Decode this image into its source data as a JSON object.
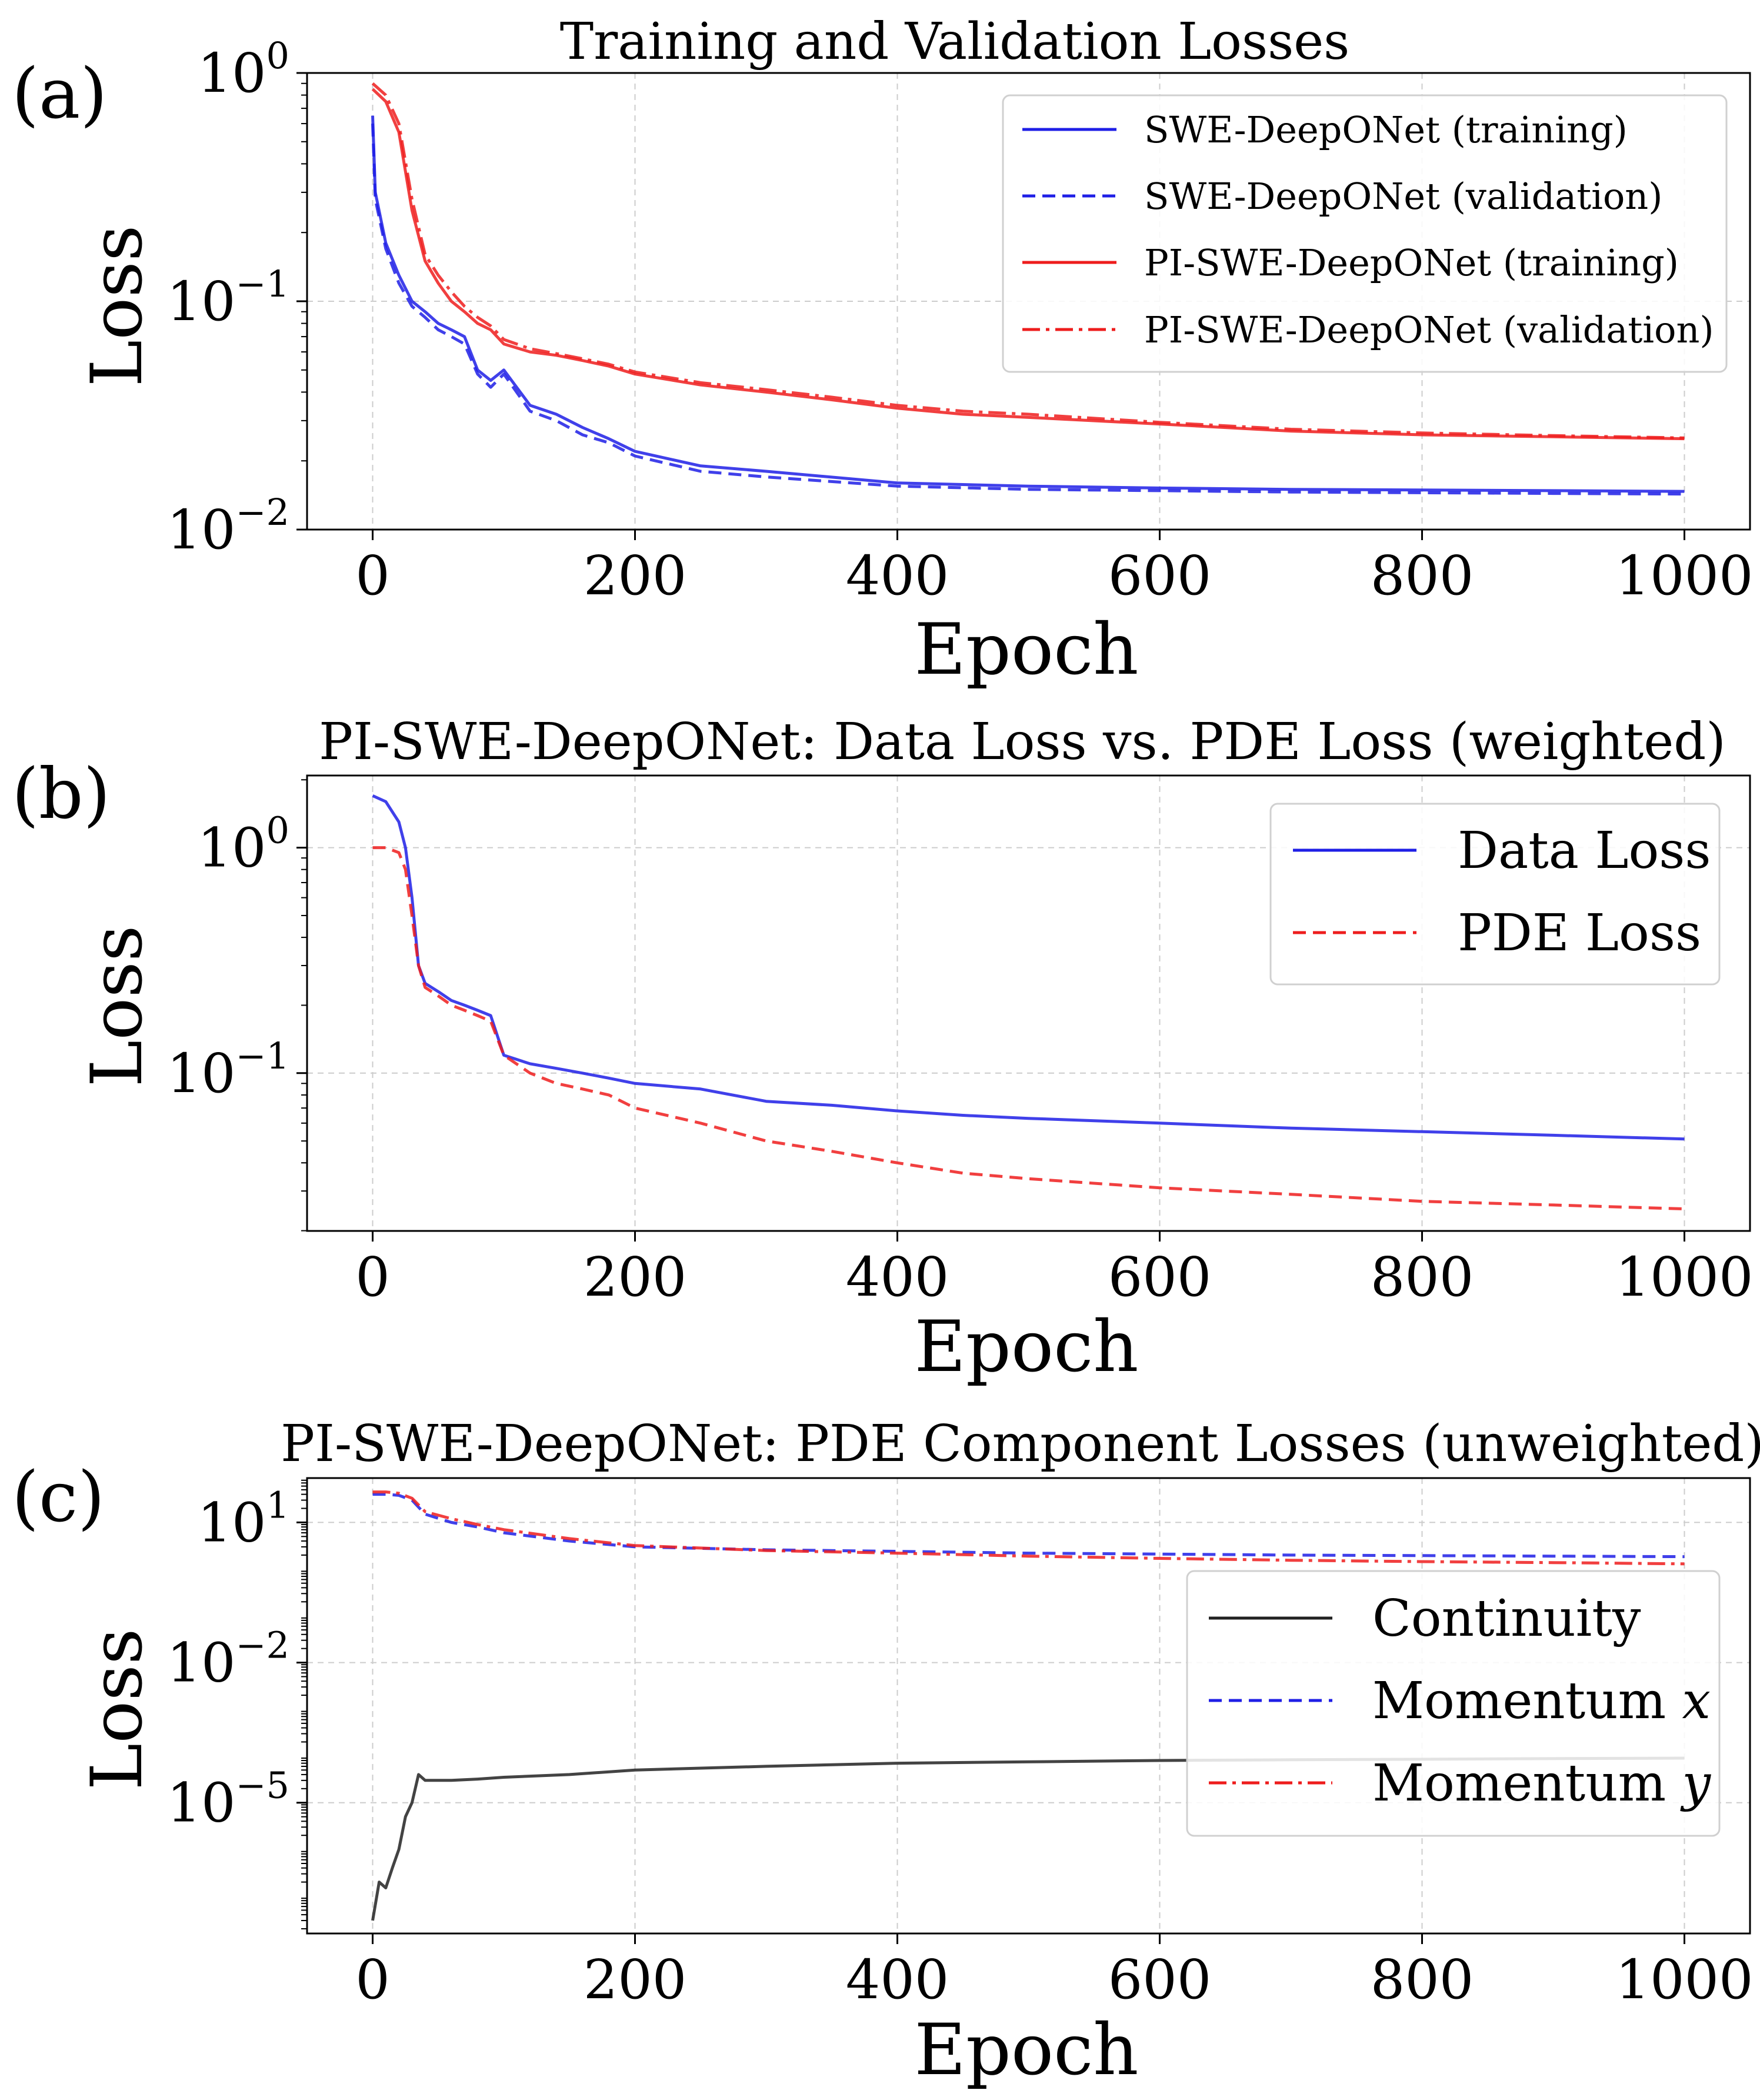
{
  "colors": {
    "blue": "#1f1fe6",
    "red": "#ee1d1d",
    "black": "#222222",
    "grid": "#cccccc",
    "legend_edge": "#d0d0d0"
  },
  "chart_data": [
    {
      "panel": "(a)",
      "type": "line",
      "title": "Training and Validation Losses",
      "xlabel": "Epoch",
      "ylabel": "Loss",
      "xlim": [
        -50,
        1050
      ],
      "ylog": true,
      "ylim_exp": [
        -2,
        0
      ],
      "xticks": [
        "0",
        "200",
        "400",
        "600",
        "800",
        "1000"
      ],
      "yticks": [
        {
          "exp": 0,
          "base": "10",
          "sup": "0"
        },
        {
          "exp": -1,
          "base": "10",
          "sup": "−1"
        },
        {
          "exp": -2,
          "base": "10",
          "sup": "−2"
        }
      ],
      "grid": true,
      "legend": "top-right",
      "series": [
        {
          "name": "SWE-DeepONet (training)",
          "color": "blue",
          "dash": "solid",
          "x": [
            0,
            2,
            10,
            20,
            30,
            40,
            50,
            60,
            70,
            80,
            90,
            100,
            120,
            140,
            160,
            180,
            200,
            250,
            300,
            400,
            500,
            600,
            700,
            800,
            900,
            1000
          ],
          "y": [
            0.65,
            0.3,
            0.18,
            0.13,
            0.1,
            0.09,
            0.08,
            0.075,
            0.07,
            0.05,
            0.045,
            0.05,
            0.035,
            0.032,
            0.028,
            0.025,
            0.022,
            0.019,
            0.018,
            0.016,
            0.0155,
            0.0152,
            0.015,
            0.0149,
            0.0148,
            0.0147
          ]
        },
        {
          "name": "SWE-DeepONet (validation)",
          "color": "blue",
          "dash": "dashed",
          "x": [
            0,
            2,
            10,
            20,
            30,
            40,
            50,
            60,
            70,
            80,
            90,
            100,
            120,
            140,
            160,
            180,
            200,
            250,
            300,
            400,
            500,
            600,
            700,
            800,
            900,
            1000
          ],
          "y": [
            0.6,
            0.28,
            0.17,
            0.12,
            0.095,
            0.085,
            0.075,
            0.07,
            0.065,
            0.048,
            0.042,
            0.048,
            0.033,
            0.03,
            0.026,
            0.024,
            0.021,
            0.018,
            0.017,
            0.0155,
            0.015,
            0.0148,
            0.0146,
            0.0145,
            0.0144,
            0.0143
          ]
        },
        {
          "name": "PI-SWE-DeepONet (training)",
          "color": "red",
          "dash": "solid",
          "x": [
            0,
            10,
            20,
            30,
            40,
            50,
            60,
            70,
            80,
            90,
            100,
            120,
            140,
            160,
            180,
            200,
            250,
            300,
            350,
            400,
            450,
            500,
            600,
            700,
            800,
            900,
            1000
          ],
          "y": [
            0.85,
            0.75,
            0.55,
            0.25,
            0.15,
            0.12,
            0.1,
            0.09,
            0.08,
            0.075,
            0.065,
            0.06,
            0.058,
            0.055,
            0.052,
            0.048,
            0.043,
            0.04,
            0.037,
            0.034,
            0.032,
            0.031,
            0.029,
            0.027,
            0.026,
            0.0255,
            0.025
          ]
        },
        {
          "name": "PI-SWE-DeepONet (validation)",
          "color": "red",
          "dash": "dashdot",
          "x": [
            0,
            10,
            20,
            30,
            40,
            50,
            60,
            70,
            80,
            90,
            100,
            120,
            140,
            160,
            180,
            200,
            250,
            300,
            350,
            400,
            450,
            500,
            600,
            700,
            800,
            900,
            1000
          ],
          "y": [
            0.9,
            0.8,
            0.6,
            0.28,
            0.16,
            0.13,
            0.11,
            0.095,
            0.085,
            0.078,
            0.068,
            0.062,
            0.059,
            0.056,
            0.053,
            0.049,
            0.044,
            0.041,
            0.038,
            0.035,
            0.033,
            0.032,
            0.0295,
            0.0275,
            0.0265,
            0.0258,
            0.0252
          ]
        }
      ]
    },
    {
      "panel": "(b)",
      "type": "line",
      "title": "PI-SWE-DeepONet: Data Loss vs. PDE Loss (weighted)",
      "xlabel": "Epoch",
      "ylabel": "Loss",
      "xlim": [
        -50,
        1050
      ],
      "ylog": true,
      "ylim_exp": [
        -1.7,
        0.32
      ],
      "xticks": [
        "0",
        "200",
        "400",
        "600",
        "800",
        "1000"
      ],
      "yticks": [
        {
          "exp": 0,
          "base": "10",
          "sup": "0"
        },
        {
          "exp": -1,
          "base": "10",
          "sup": "−1"
        }
      ],
      "grid": true,
      "legend": "top-right",
      "series": [
        {
          "name": "Data Loss",
          "color": "blue",
          "dash": "solid",
          "x": [
            0,
            10,
            20,
            25,
            30,
            35,
            40,
            50,
            60,
            70,
            80,
            90,
            100,
            120,
            140,
            160,
            180,
            200,
            250,
            300,
            350,
            400,
            450,
            500,
            600,
            700,
            800,
            900,
            1000
          ],
          "y": [
            1.7,
            1.6,
            1.3,
            1.0,
            0.6,
            0.3,
            0.25,
            0.23,
            0.21,
            0.2,
            0.19,
            0.18,
            0.12,
            0.11,
            0.105,
            0.1,
            0.095,
            0.09,
            0.085,
            0.075,
            0.072,
            0.068,
            0.065,
            0.063,
            0.06,
            0.057,
            0.055,
            0.053,
            0.051
          ]
        },
        {
          "name": "PDE Loss",
          "color": "red",
          "dash": "dashed",
          "x": [
            0,
            10,
            20,
            25,
            30,
            35,
            40,
            50,
            60,
            70,
            80,
            90,
            100,
            120,
            140,
            160,
            180,
            200,
            250,
            300,
            350,
            400,
            450,
            500,
            600,
            700,
            800,
            900,
            1000
          ],
          "y": [
            1.0,
            1.0,
            0.95,
            0.8,
            0.5,
            0.3,
            0.24,
            0.22,
            0.2,
            0.19,
            0.18,
            0.17,
            0.12,
            0.1,
            0.09,
            0.085,
            0.08,
            0.07,
            0.06,
            0.05,
            0.045,
            0.04,
            0.036,
            0.034,
            0.031,
            0.029,
            0.027,
            0.026,
            0.025
          ]
        }
      ]
    },
    {
      "panel": "(c)",
      "type": "line",
      "title": "PI-SWE-DeepONet: PDE Component Losses (unweighted)",
      "xlabel": "Epoch",
      "ylabel": "Loss",
      "xlim": [
        -50,
        1050
      ],
      "ylog": true,
      "ylim_exp": [
        -7.8,
        1.95
      ],
      "xticks": [
        "0",
        "200",
        "400",
        "600",
        "800",
        "1000"
      ],
      "yticks": [
        {
          "exp": 1,
          "base": "10",
          "sup": "1"
        },
        {
          "exp": -2,
          "base": "10",
          "sup": "−2"
        },
        {
          "exp": -5,
          "base": "10",
          "sup": "−5"
        }
      ],
      "grid": true,
      "legend": "right",
      "series": [
        {
          "name": "Continuity",
          "color": "black",
          "dash": "solid",
          "x": [
            0,
            5,
            10,
            15,
            20,
            25,
            30,
            35,
            40,
            60,
            80,
            100,
            150,
            200,
            300,
            400,
            500,
            600,
            700,
            800,
            900,
            1000
          ],
          "y": [
            3e-08,
            2e-07,
            1.5e-07,
            4e-07,
            1e-06,
            5e-06,
            1e-05,
            4e-05,
            3e-05,
            3e-05,
            3.2e-05,
            3.5e-05,
            4e-05,
            5e-05,
            6e-05,
            7e-05,
            7.5e-05,
            8e-05,
            8.3e-05,
            8.5e-05,
            8.8e-05,
            9e-05
          ]
        },
        {
          "name": "Momentum x",
          "color": "blue",
          "dash": "dashed",
          "x": [
            0,
            10,
            20,
            30,
            40,
            60,
            80,
            100,
            150,
            200,
            300,
            400,
            500,
            600,
            700,
            800,
            900,
            1000
          ],
          "y": [
            40,
            40,
            38,
            30,
            15,
            10,
            8,
            6,
            4,
            3,
            2.6,
            2.4,
            2.2,
            2.1,
            2.0,
            1.95,
            1.9,
            1.85
          ]
        },
        {
          "name": "Momentum y",
          "color": "red",
          "dash": "dashdot",
          "x": [
            0,
            10,
            20,
            30,
            40,
            60,
            80,
            100,
            150,
            200,
            300,
            400,
            500,
            600,
            700,
            800,
            900,
            1000
          ],
          "y": [
            45,
            45,
            42,
            33,
            17,
            12,
            9,
            7,
            4.5,
            3.2,
            2.5,
            2.2,
            1.9,
            1.7,
            1.55,
            1.45,
            1.38,
            1.3
          ]
        }
      ]
    }
  ],
  "legend_c_labels": {
    "momentum_prefix": "Momentum ",
    "x_var": "x",
    "y_var": "y"
  }
}
